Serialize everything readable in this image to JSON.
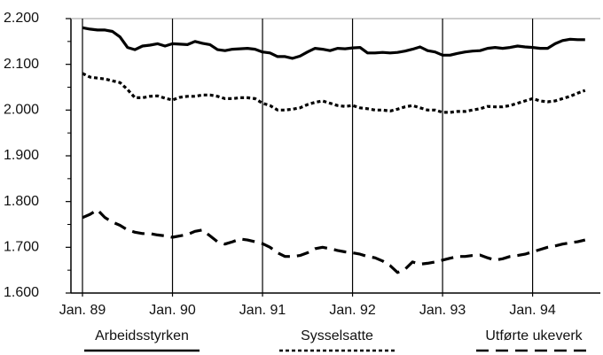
{
  "chart_data": {
    "type": "line",
    "categories": [
      "Jan. 89",
      null,
      null,
      null,
      null,
      null,
      null,
      null,
      null,
      null,
      null,
      null,
      "Jan. 90",
      null,
      null,
      null,
      null,
      null,
      null,
      null,
      null,
      null,
      null,
      null,
      "Jan. 91",
      null,
      null,
      null,
      null,
      null,
      null,
      null,
      null,
      null,
      null,
      null,
      "Jan. 92",
      null,
      null,
      null,
      null,
      null,
      null,
      null,
      null,
      null,
      null,
      null,
      "Jan. 93",
      null,
      null,
      null,
      null,
      null,
      null,
      null,
      null,
      null,
      null,
      null,
      "Jan. 94",
      null,
      null,
      null,
      null,
      null,
      null,
      null
    ],
    "series": [
      {
        "name": "Arbeidsstyrken",
        "color": "#000000",
        "style": "solid",
        "values": [
          2180,
          2177,
          2175,
          2175,
          2172,
          2160,
          2137,
          2132,
          2140,
          2142,
          2145,
          2140,
          2145,
          2144,
          2143,
          2150,
          2146,
          2143,
          2132,
          2130,
          2133,
          2134,
          2135,
          2133,
          2127,
          2125,
          2117,
          2117,
          2113,
          2118,
          2127,
          2135,
          2133,
          2130,
          2135,
          2134,
          2136,
          2137,
          2125,
          2125,
          2126,
          2125,
          2126,
          2129,
          2133,
          2138,
          2130,
          2127,
          2120,
          2120,
          2124,
          2127,
          2129,
          2130,
          2135,
          2137,
          2135,
          2137,
          2140,
          2138,
          2137,
          2135,
          2135,
          2145,
          2152,
          2155,
          2154,
          2154
        ]
      },
      {
        "name": "Sysselsatte",
        "color": "#000000",
        "style": "dotted",
        "values": [
          2080,
          2072,
          2070,
          2068,
          2064,
          2060,
          2045,
          2027,
          2027,
          2030,
          2031,
          2026,
          2022,
          2028,
          2030,
          2030,
          2033,
          2033,
          2030,
          2025,
          2025,
          2027,
          2027,
          2025,
          2015,
          2010,
          2000,
          2000,
          2002,
          2005,
          2012,
          2017,
          2020,
          2015,
          2010,
          2008,
          2010,
          2005,
          2003,
          2000,
          2000,
          1998,
          2002,
          2007,
          2010,
          2005,
          2000,
          2000,
          1995,
          1995,
          1997,
          1997,
          2000,
          2003,
          2008,
          2007,
          2007,
          2010,
          2015,
          2020,
          2025,
          2020,
          2018,
          2020,
          2025,
          2030,
          2037,
          2043
        ]
      },
      {
        "name": "Utførte ukeverk",
        "color": "#000000",
        "style": "dashed",
        "values": [
          1765,
          1772,
          1782,
          1765,
          1755,
          1748,
          1738,
          1733,
          1730,
          1730,
          1727,
          1725,
          1722,
          1725,
          1728,
          1735,
          1738,
          1725,
          1712,
          1707,
          1712,
          1718,
          1716,
          1712,
          1708,
          1700,
          1688,
          1680,
          1680,
          1682,
          1688,
          1697,
          1700,
          1697,
          1693,
          1690,
          1688,
          1685,
          1680,
          1677,
          1670,
          1660,
          1645,
          1652,
          1668,
          1663,
          1665,
          1668,
          1672,
          1676,
          1680,
          1680,
          1682,
          1683,
          1677,
          1672,
          1675,
          1680,
          1682,
          1685,
          1690,
          1695,
          1700,
          1703,
          1707,
          1710,
          1712,
          1716
        ]
      }
    ],
    "ylim": [
      1600,
      2200
    ],
    "yticks": [
      {
        "value": 1600,
        "label": "1.600"
      },
      {
        "value": 1700,
        "label": "1.700"
      },
      {
        "value": 1800,
        "label": "1.800"
      },
      {
        "value": 1900,
        "label": "1.900"
      },
      {
        "value": 2000,
        "label": "2.000"
      },
      {
        "value": 2100,
        "label": "2.100"
      },
      {
        "value": 2200,
        "label": "2.200"
      }
    ],
    "legend": "bottom"
  }
}
